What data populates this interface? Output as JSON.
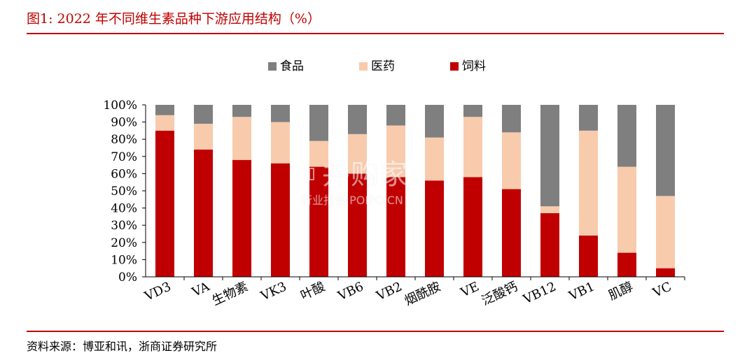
{
  "figure": {
    "title": "图1:  2022 年不同维生素品种下游应用结构（%）",
    "source": "资料来源：博亚和讯，浙商证券研究所"
  },
  "watermark": {
    "main": "并购家",
    "sub": "行业报告 POIPO.CN"
  },
  "colors": {
    "accent": "#c00000",
    "food": "#7f7f7f",
    "medicine": "#f8cbad",
    "feed": "#c00000"
  },
  "chart_data": {
    "type": "bar",
    "stacked": true,
    "percent": true,
    "categories": [
      "VD3",
      "VA",
      "生物素",
      "VK3",
      "叶酸",
      "VB6",
      "VB2",
      "烟酰胺",
      "VE",
      "泛酸钙",
      "VB12",
      "VB1",
      "肌醇",
      "VC"
    ],
    "series": [
      {
        "name": "饲料",
        "color": "#c00000",
        "values": [
          85,
          74,
          68,
          66,
          64,
          60,
          58,
          56,
          58,
          51,
          37,
          24,
          14,
          5
        ]
      },
      {
        "name": "医药",
        "color": "#f8cbad",
        "values": [
          9,
          15,
          25,
          24,
          15,
          23,
          30,
          25,
          35,
          33,
          4,
          61,
          50,
          42
        ]
      },
      {
        "name": "食品",
        "color": "#7f7f7f",
        "values": [
          6,
          11,
          7,
          10,
          21,
          17,
          12,
          19,
          7,
          16,
          59,
          15,
          36,
          53
        ]
      }
    ],
    "legend": {
      "order": [
        "食品",
        "医药",
        "饲料"
      ],
      "placement": "top-center"
    },
    "ylim": [
      0,
      100
    ],
    "yticks": [
      "0%",
      "10%",
      "20%",
      "30%",
      "40%",
      "50%",
      "60%",
      "70%",
      "80%",
      "90%",
      "100%"
    ],
    "grid": false
  }
}
